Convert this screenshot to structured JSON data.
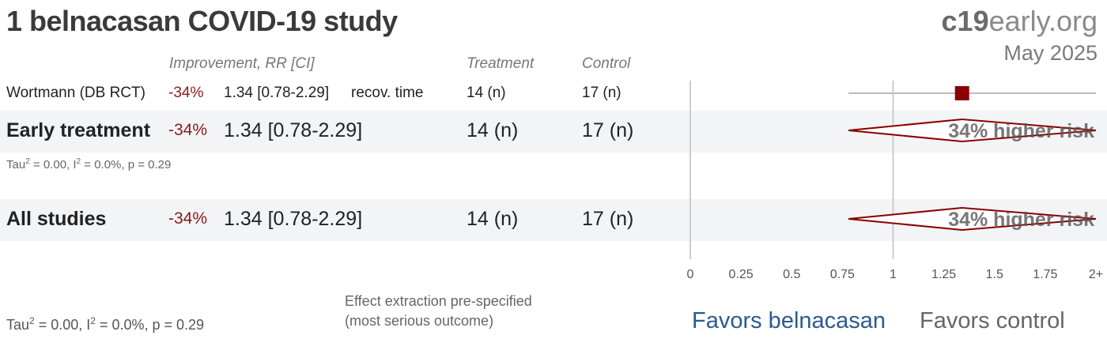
{
  "header": {
    "title": "1 belnacasan COVID-19 study",
    "brand_bold": "c19",
    "brand_rest": "early.org",
    "date": "May 2025"
  },
  "columns": {
    "improvement": "Improvement, RR [CI]",
    "treatment": "Treatment",
    "control": "Control"
  },
  "rows": [
    {
      "label": "Wortmann (DB RCT)",
      "improvement": "-34%",
      "rr_ci": "1.34 [0.78-2.29]",
      "outcome": "recov. time",
      "treatment": "14 (n)",
      "control": "17 (n)"
    },
    {
      "label": "Early treatment",
      "improvement": "-34%",
      "rr_ci": "1.34 [0.78-2.29]",
      "treatment": "14 (n)",
      "control": "17 (n)",
      "risk_label": "34% higher risk",
      "stats": {
        "tau": "Tau",
        "sup2": "2",
        "eq": " = 0.00, I",
        "sup2b": "2",
        "rest": " = 0.0%, p = 0.29"
      }
    },
    {
      "label": "All studies",
      "improvement": "-34%",
      "rr_ci": "1.34 [0.78-2.29]",
      "treatment": "14 (n)",
      "control": "17 (n)",
      "risk_label": "34% higher risk"
    }
  ],
  "footer": {
    "stats": {
      "tau": "Tau",
      "sup2": "2",
      "eq": " = 0.00, I",
      "sup2b": "2",
      "rest": " = 0.0%, p = 0.29"
    },
    "note_line1": "Effect extraction pre-specified",
    "note_line2": "(most serious outcome)",
    "favors_left": "Favors belnacasan",
    "favors_right": "Favors control"
  },
  "chart_data": {
    "type": "forest",
    "x_ticks": [
      "0",
      "0.25",
      "0.5",
      "0.75",
      "1",
      "1.25",
      "1.5",
      "1.75",
      "2+"
    ],
    "xlim": [
      0,
      2
    ],
    "reference_line": 1,
    "studies": [
      {
        "name": "Wortmann (DB RCT)",
        "rr": 1.34,
        "ci_low": 0.78,
        "ci_high": 2.29,
        "kind": "point"
      }
    ],
    "pooled": [
      {
        "name": "Early treatment",
        "rr": 1.34,
        "ci_low": 0.78,
        "ci_high": 2.29,
        "kind": "diamond"
      },
      {
        "name": "All studies",
        "rr": 1.34,
        "ci_low": 0.78,
        "ci_high": 2.29,
        "kind": "diamond"
      }
    ],
    "colors": {
      "point": "#8b0000",
      "diamond": "#8b0000",
      "ci_line": "#bbbbbb",
      "axis": "#cccccc"
    }
  }
}
